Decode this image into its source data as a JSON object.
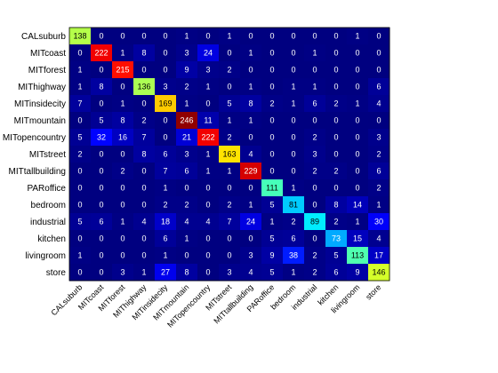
{
  "chart_data": {
    "type": "heatmap",
    "title": "",
    "xlabel": "",
    "ylabel": "",
    "colormap": "jet",
    "color_range": [
      0,
      250
    ],
    "grid": false,
    "row_labels": [
      "CALsuburb",
      "MITcoast",
      "MITforest",
      "MIThighway",
      "MITinsidecity",
      "MITmountain",
      "MITopencountry",
      "MITstreet",
      "MITtallbuilding",
      "PARoffice",
      "bedroom",
      "industrial",
      "kitchen",
      "livingroom",
      "store"
    ],
    "col_labels": [
      "CALsuburb",
      "MITcoast",
      "MITforest",
      "MIThighway",
      "MITinsidecity",
      "MITmountain",
      "MITopencountry",
      "MITstreet",
      "MITtallbuilding",
      "PARoffice",
      "bedroom",
      "industrial",
      "kitchen",
      "livingroom",
      "store"
    ],
    "values": [
      [
        138,
        0,
        0,
        0,
        0,
        1,
        0,
        1,
        0,
        0,
        0,
        0,
        0,
        1,
        0
      ],
      [
        0,
        222,
        1,
        8,
        0,
        3,
        24,
        0,
        1,
        0,
        0,
        1,
        0,
        0,
        0
      ],
      [
        1,
        0,
        215,
        0,
        0,
        9,
        3,
        2,
        0,
        0,
        0,
        0,
        0,
        0,
        0
      ],
      [
        1,
        8,
        0,
        136,
        3,
        2,
        1,
        0,
        1,
        0,
        1,
        1,
        0,
        0,
        6
      ],
      [
        7,
        0,
        1,
        0,
        169,
        1,
        0,
        5,
        8,
        2,
        1,
        6,
        2,
        1,
        4
      ],
      [
        0,
        5,
        8,
        2,
        0,
        246,
        11,
        1,
        1,
        0,
        0,
        0,
        0,
        0,
        0
      ],
      [
        5,
        32,
        16,
        7,
        0,
        21,
        222,
        2,
        0,
        0,
        0,
        2,
        0,
        0,
        3
      ],
      [
        2,
        0,
        0,
        8,
        6,
        3,
        1,
        163,
        4,
        0,
        0,
        3,
        0,
        0,
        2
      ],
      [
        0,
        0,
        2,
        0,
        7,
        6,
        1,
        1,
        229,
        0,
        0,
        2,
        2,
        0,
        6
      ],
      [
        0,
        0,
        0,
        0,
        1,
        0,
        0,
        0,
        0,
        111,
        1,
        0,
        0,
        0,
        2
      ],
      [
        0,
        0,
        0,
        0,
        2,
        2,
        0,
        2,
        1,
        5,
        81,
        0,
        8,
        14,
        1
      ],
      [
        5,
        6,
        1,
        4,
        18,
        4,
        4,
        7,
        24,
        1,
        2,
        89,
        2,
        1,
        30
      ],
      [
        0,
        0,
        0,
        0,
        6,
        1,
        0,
        0,
        0,
        5,
        6,
        0,
        73,
        15,
        4
      ],
      [
        1,
        0,
        0,
        0,
        1,
        0,
        0,
        0,
        3,
        9,
        38,
        2,
        5,
        113,
        17
      ],
      [
        0,
        0,
        3,
        1,
        27,
        8,
        0,
        3,
        4,
        5,
        1,
        2,
        6,
        9,
        146
      ]
    ]
  }
}
